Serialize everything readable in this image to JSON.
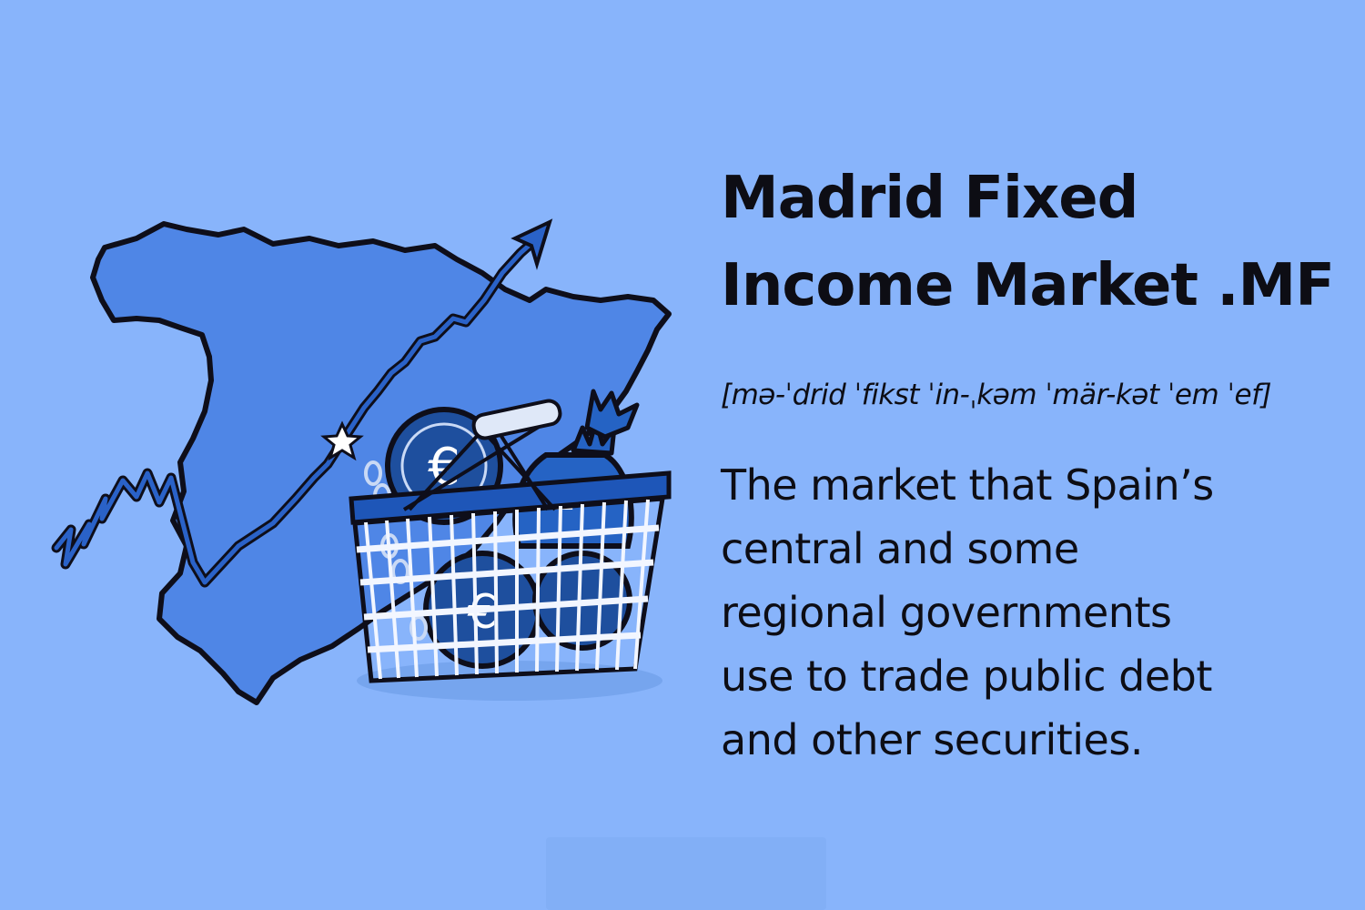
{
  "title": {
    "line1": "Madrid Fixed",
    "line2": "Income Market .MF"
  },
  "pronunciation": "[mə-ˈdrid ˈfikst ˈin-ˌkəm ˈmär-kət ˈem ˈef]",
  "definition": {
    "line1": "The market that Spain’s",
    "line2": "central and some",
    "line3": "regional governments",
    "line4": "use to trade public debt",
    "line5": "and other securities."
  },
  "colors": {
    "background": "#88b4fb",
    "map_fill": "#4f86e6",
    "arrow": "#1f4fa8",
    "basket": "#1e56b8",
    "text": "#0d0d14"
  },
  "illustration": {
    "icons": [
      "spain-map-icon",
      "rising-arrow-icon",
      "star-icon",
      "shopping-basket-icon",
      "euro-coin-icon",
      "money-bag-icon",
      "chain-icon"
    ]
  }
}
